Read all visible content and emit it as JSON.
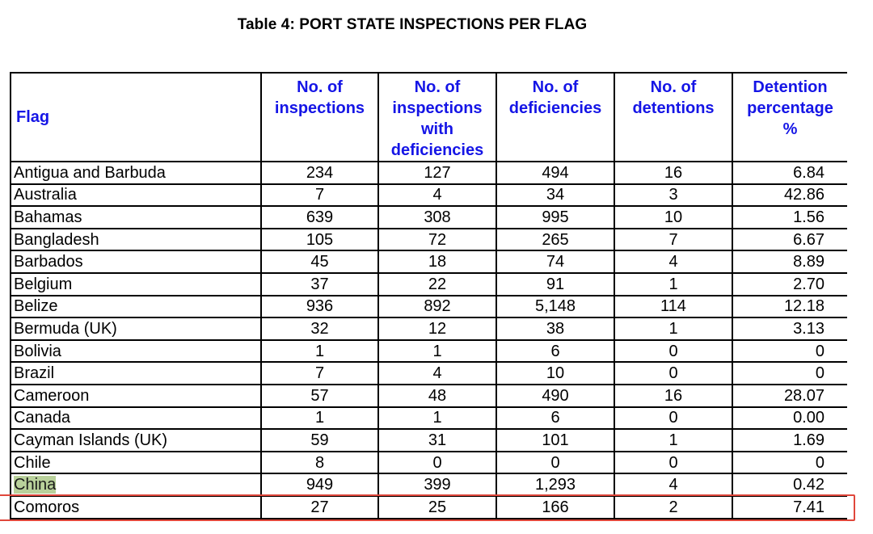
{
  "title": "Table 4: PORT STATE INSPECTIONS PER FLAG",
  "headers": [
    "Flag",
    "No. of inspections",
    "No. of inspections with deficiencies",
    "No. of deficiencies",
    "No. of detentions",
    "Detention percentage %"
  ],
  "rows": [
    [
      "Antigua and Barbuda",
      "234",
      "127",
      "494",
      "16",
      "6.84"
    ],
    [
      "Australia",
      "7",
      "4",
      "34",
      "3",
      "42.86"
    ],
    [
      "Bahamas",
      "639",
      "308",
      "995",
      "10",
      "1.56"
    ],
    [
      "Bangladesh",
      "105",
      "72",
      "265",
      "7",
      "6.67"
    ],
    [
      "Barbados",
      "45",
      "18",
      "74",
      "4",
      "8.89"
    ],
    [
      "Belgium",
      "37",
      "22",
      "91",
      "1",
      "2.70"
    ],
    [
      "Belize",
      "936",
      "892",
      "5,148",
      "114",
      "12.18"
    ],
    [
      "Bermuda (UK)",
      "32",
      "12",
      "38",
      "1",
      "3.13"
    ],
    [
      "Bolivia",
      "1",
      "1",
      "6",
      "0",
      "0"
    ],
    [
      "Brazil",
      "7",
      "4",
      "10",
      "0",
      "0"
    ],
    [
      "Cameroon",
      "57",
      "48",
      "490",
      "16",
      "28.07"
    ],
    [
      "Canada",
      "1",
      "1",
      "6",
      "0",
      "0.00"
    ],
    [
      "Cayman Islands (UK)",
      "59",
      "31",
      "101",
      "1",
      "1.69"
    ],
    [
      "Chile",
      "8",
      "0",
      "0",
      "0",
      "0"
    ],
    [
      "China",
      "949",
      "399",
      "1,293",
      "4",
      "0.42"
    ],
    [
      "Comoros",
      "27",
      "25",
      "166",
      "2",
      "7.41"
    ]
  ],
  "highlighted_row": "China",
  "colors": {
    "header_text": "#1515e6",
    "highlight_fill": "#b9d19b",
    "highlight_box": "#e0473b"
  }
}
